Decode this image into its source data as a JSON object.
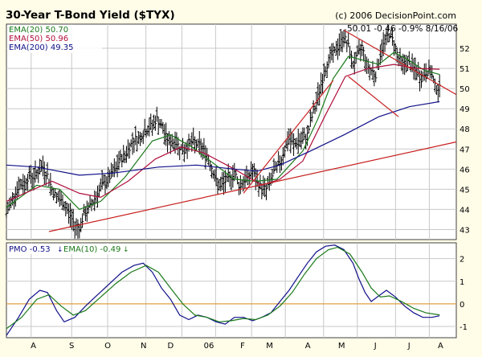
{
  "chart_data": [
    {
      "type": "line",
      "title": "30-Year T-Bond Yield ($TYX)",
      "copyright": "(c) 2006 DecisionPoint.com",
      "header_values": "50.01  -0.46  -0.9%  8/16/06",
      "x_labels": [
        "A",
        "S",
        "O",
        "N",
        "D",
        "06",
        "F",
        "M",
        "A",
        "M",
        "J",
        "J",
        "A"
      ],
      "y_ticks": [
        43,
        44,
        45,
        46,
        47,
        48,
        49,
        50,
        51,
        52
      ],
      "ylim": [
        42.5,
        53.2
      ],
      "grid": true,
      "legend": [
        {
          "label": "EMA(20) 50.70",
          "color": "#1a7a1a"
        },
        {
          "label": "EMA(50) 50.96",
          "color": "#b0103c"
        },
        {
          "label": "EMA(200) 49.35",
          "color": "#10108a"
        }
      ],
      "series": [
        {
          "name": "TYX",
          "style": "ohlc-bars",
          "color": "#000000",
          "points": [
            [
              0,
              43.8
            ],
            [
              3,
              44.4
            ],
            [
              6,
              44.9
            ],
            [
              9,
              45.2
            ],
            [
              12,
              45.3
            ],
            [
              15,
              45.7
            ],
            [
              18,
              45.6
            ],
            [
              21,
              45.9
            ],
            [
              24,
              46.1
            ],
            [
              27,
              45.7
            ],
            [
              30,
              45.0
            ],
            [
              33,
              44.6
            ],
            [
              36,
              44.4
            ],
            [
              39,
              44.1
            ],
            [
              42,
              43.7
            ],
            [
              45,
              43.2
            ],
            [
              48,
              43.1
            ],
            [
              51,
              43.7
            ],
            [
              54,
              44.0
            ],
            [
              57,
              44.4
            ],
            [
              60,
              44.8
            ],
            [
              63,
              45.2
            ],
            [
              66,
              45.4
            ],
            [
              69,
              45.7
            ],
            [
              72,
              46.0
            ],
            [
              75,
              46.5
            ],
            [
              78,
              46.7
            ],
            [
              81,
              47.1
            ],
            [
              84,
              47.5
            ],
            [
              87,
              47.5
            ],
            [
              90,
              47.8
            ],
            [
              93,
              48.0
            ],
            [
              96,
              48.2
            ],
            [
              99,
              48.5
            ],
            [
              102,
              48.1
            ],
            [
              105,
              47.6
            ],
            [
              108,
              47.3
            ],
            [
              111,
              47.4
            ],
            [
              114,
              47.1
            ],
            [
              117,
              46.9
            ],
            [
              120,
              47.3
            ],
            [
              123,
              47.3
            ],
            [
              126,
              47.2
            ],
            [
              129,
              47.0
            ],
            [
              132,
              46.7
            ],
            [
              135,
              46.1
            ],
            [
              138,
              45.4
            ],
            [
              141,
              45.1
            ],
            [
              144,
              45.4
            ],
            [
              147,
              45.5
            ],
            [
              150,
              45.9
            ],
            [
              153,
              45.2
            ],
            [
              156,
              45.4
            ],
            [
              159,
              45.6
            ],
            [
              162,
              45.9
            ],
            [
              165,
              45.3
            ],
            [
              168,
              45.1
            ],
            [
              171,
              45.0
            ],
            [
              174,
              45.5
            ],
            [
              177,
              46.0
            ],
            [
              180,
              46.3
            ],
            [
              183,
              47.0
            ],
            [
              186,
              47.5
            ],
            [
              189,
              47.2
            ],
            [
              192,
              47.4
            ],
            [
              195,
              47.4
            ],
            [
              198,
              47.7
            ],
            [
              201,
              48.6
            ],
            [
              204,
              49.3
            ],
            [
              207,
              50.2
            ],
            [
              210,
              51.0
            ],
            [
              213,
              51.6
            ],
            [
              216,
              51.8
            ],
            [
              219,
              52.2
            ],
            [
              222,
              52.6
            ],
            [
              225,
              52.1
            ],
            [
              228,
              51.2
            ],
            [
              231,
              51.6
            ],
            [
              234,
              52.1
            ],
            [
              237,
              51.2
            ],
            [
              240,
              50.9
            ],
            [
              243,
              50.7
            ],
            [
              246,
              51.7
            ],
            [
              249,
              52.4
            ],
            [
              252,
              52.7
            ],
            [
              255,
              52.3
            ],
            [
              258,
              51.5
            ],
            [
              261,
              51.2
            ],
            [
              264,
              51.3
            ],
            [
              267,
              51.1
            ],
            [
              270,
              50.8
            ],
            [
              273,
              50.5
            ],
            [
              276,
              50.8
            ],
            [
              279,
              50.9
            ],
            [
              282,
              50.1
            ],
            [
              285,
              50.0
            ]
          ]
        },
        {
          "name": "EMA(20)",
          "style": "line",
          "color": "#1a7a1a",
          "points": [
            [
              0,
              44.1
            ],
            [
              20,
              45.2
            ],
            [
              35,
              45.0
            ],
            [
              48,
              44.0
            ],
            [
              62,
              44.4
            ],
            [
              78,
              45.6
            ],
            [
              96,
              47.4
            ],
            [
              108,
              47.7
            ],
            [
              122,
              47.1
            ],
            [
              136,
              46.3
            ],
            [
              150,
              45.5
            ],
            [
              164,
              45.4
            ],
            [
              178,
              45.5
            ],
            [
              195,
              46.9
            ],
            [
              205,
              48.5
            ],
            [
              215,
              50.5
            ],
            [
              225,
              51.6
            ],
            [
              235,
              51.4
            ],
            [
              245,
              51.2
            ],
            [
              255,
              51.8
            ],
            [
              265,
              51.4
            ],
            [
              275,
              50.9
            ],
            [
              285,
              50.7
            ]
          ]
        },
        {
          "name": "EMA(50)",
          "style": "line",
          "color": "#b0103c",
          "points": [
            [
              0,
              44.4
            ],
            [
              30,
              45.4
            ],
            [
              48,
              44.8
            ],
            [
              62,
              44.6
            ],
            [
              80,
              45.4
            ],
            [
              98,
              46.5
            ],
            [
              115,
              47.1
            ],
            [
              130,
              46.8
            ],
            [
              150,
              46.0
            ],
            [
              168,
              45.2
            ],
            [
              180,
              45.5
            ],
            [
              195,
              46.4
            ],
            [
              210,
              48.7
            ],
            [
              223,
              50.6
            ],
            [
              238,
              51.0
            ],
            [
              255,
              51.2
            ],
            [
              270,
              51.0
            ],
            [
              285,
              50.96
            ]
          ]
        },
        {
          "name": "EMA(200)",
          "style": "line",
          "color": "#10108a",
          "points": [
            [
              0,
              46.2
            ],
            [
              20,
              46.1
            ],
            [
              48,
              45.7
            ],
            [
              70,
              45.8
            ],
            [
              100,
              46.1
            ],
            [
              125,
              46.2
            ],
            [
              150,
              46.0
            ],
            [
              165,
              45.9
            ],
            [
              180,
              46.2
            ],
            [
              200,
              46.9
            ],
            [
              222,
              47.7
            ],
            [
              245,
              48.6
            ],
            [
              265,
              49.1
            ],
            [
              285,
              49.35
            ]
          ]
        }
      ],
      "annotations": [
        {
          "type": "trendline",
          "color": "#c82020",
          "points": [
            [
              28,
              42.9
            ],
            [
              296,
              47.35
            ]
          ]
        },
        {
          "type": "trendline",
          "color": "#c82020",
          "points": [
            [
              156,
              44.8
            ],
            [
              215,
              50.4
            ]
          ]
        },
        {
          "type": "trendline",
          "color": "#c82020",
          "points": [
            [
              222,
              52.9
            ],
            [
              296,
              49.7
            ]
          ]
        },
        {
          "type": "trendline",
          "color": "#c82020",
          "points": [
            [
              225,
              50.6
            ],
            [
              258,
              48.6
            ]
          ]
        }
      ]
    },
    {
      "type": "line",
      "x_labels": [
        "A",
        "S",
        "O",
        "N",
        "D",
        "06",
        "F",
        "M",
        "A",
        "M",
        "J",
        "J",
        "A"
      ],
      "y_ticks": [
        -1,
        0,
        1,
        2
      ],
      "ylim": [
        -1.5,
        2.7
      ],
      "legend": [
        {
          "label": "PMO  -0.53",
          "color": "#10108a"
        },
        {
          "label": "EMA(10) -0.49",
          "color": "#1a7a1a"
        }
      ],
      "zero_line_color": "#e0a040",
      "series": [
        {
          "name": "PMO",
          "color": "#10108a",
          "points": [
            [
              0,
              -1.4
            ],
            [
              8,
              -0.6
            ],
            [
              15,
              0.2
            ],
            [
              22,
              0.6
            ],
            [
              27,
              0.5
            ],
            [
              33,
              -0.3
            ],
            [
              38,
              -0.8
            ],
            [
              45,
              -0.6
            ],
            [
              52,
              -0.1
            ],
            [
              60,
              0.4
            ],
            [
              68,
              0.9
            ],
            [
              76,
              1.4
            ],
            [
              84,
              1.7
            ],
            [
              90,
              1.8
            ],
            [
              96,
              1.4
            ],
            [
              102,
              0.7
            ],
            [
              108,
              0.2
            ],
            [
              114,
              -0.5
            ],
            [
              120,
              -0.7
            ],
            [
              126,
              -0.5
            ],
            [
              132,
              -0.6
            ],
            [
              138,
              -0.8
            ],
            [
              144,
              -0.9
            ],
            [
              150,
              -0.6
            ],
            [
              156,
              -0.6
            ],
            [
              162,
              -0.75
            ],
            [
              168,
              -0.6
            ],
            [
              174,
              -0.4
            ],
            [
              180,
              0.1
            ],
            [
              186,
              0.6
            ],
            [
              192,
              1.2
            ],
            [
              198,
              1.8
            ],
            [
              204,
              2.3
            ],
            [
              210,
              2.55
            ],
            [
              216,
              2.6
            ],
            [
              222,
              2.4
            ],
            [
              228,
              1.8
            ],
            [
              232,
              1.1
            ],
            [
              236,
              0.5
            ],
            [
              240,
              0.1
            ],
            [
              244,
              0.3
            ],
            [
              250,
              0.6
            ],
            [
              256,
              0.3
            ],
            [
              262,
              -0.1
            ],
            [
              268,
              -0.4
            ],
            [
              274,
              -0.6
            ],
            [
              280,
              -0.6
            ],
            [
              285,
              -0.53
            ]
          ]
        },
        {
          "name": "EMA(10)",
          "color": "#1a7a1a",
          "points": [
            [
              0,
              -1.1
            ],
            [
              10,
              -0.6
            ],
            [
              20,
              0.2
            ],
            [
              28,
              0.4
            ],
            [
              36,
              -0.1
            ],
            [
              44,
              -0.5
            ],
            [
              52,
              -0.3
            ],
            [
              62,
              0.3
            ],
            [
              72,
              0.9
            ],
            [
              82,
              1.4
            ],
            [
              92,
              1.7
            ],
            [
              100,
              1.4
            ],
            [
              108,
              0.7
            ],
            [
              116,
              0.0
            ],
            [
              124,
              -0.5
            ],
            [
              132,
              -0.6
            ],
            [
              140,
              -0.8
            ],
            [
              148,
              -0.75
            ],
            [
              156,
              -0.65
            ],
            [
              164,
              -0.7
            ],
            [
              172,
              -0.5
            ],
            [
              180,
              -0.1
            ],
            [
              188,
              0.5
            ],
            [
              196,
              1.3
            ],
            [
              204,
              2.0
            ],
            [
              212,
              2.4
            ],
            [
              218,
              2.5
            ],
            [
              226,
              2.2
            ],
            [
              234,
              1.4
            ],
            [
              240,
              0.7
            ],
            [
              246,
              0.3
            ],
            [
              252,
              0.35
            ],
            [
              260,
              0.1
            ],
            [
              268,
              -0.2
            ],
            [
              276,
              -0.4
            ],
            [
              285,
              -0.49
            ]
          ]
        }
      ]
    }
  ]
}
